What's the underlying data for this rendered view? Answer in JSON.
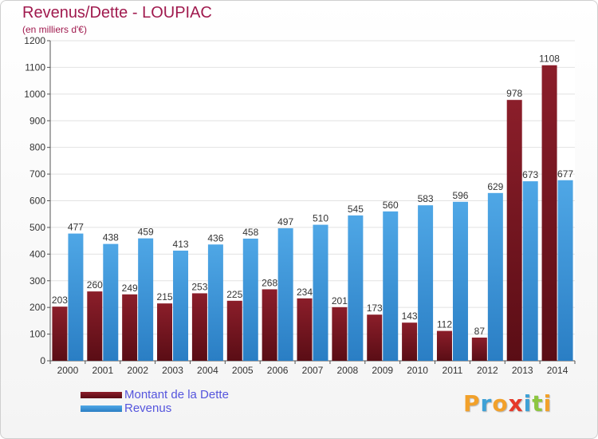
{
  "title": "Revenus/Dette - LOUPIAC",
  "subtitle": "(en milliers d'€)",
  "logo": {
    "text": "Proxiti",
    "letters": [
      "P",
      "r",
      "o",
      "x",
      "i",
      "t",
      "i"
    ],
    "colors": [
      "#f2a12a",
      "#3fa1d6",
      "#f2a12a",
      "#e6392a",
      "#3fa1d6",
      "#8dc63f",
      "#f2a12a"
    ]
  },
  "colors": {
    "dette": "#8b1e2a",
    "dette_dark": "#5a0d15",
    "revenus": "#4fa7e6",
    "revenus_dark": "#2a7ec4",
    "title": "#a01a4e",
    "legend_text": "#5555dd"
  },
  "chart_data": {
    "type": "bar",
    "categories": [
      "2000",
      "2001",
      "2002",
      "2003",
      "2004",
      "2005",
      "2006",
      "2007",
      "2008",
      "2009",
      "2010",
      "2011",
      "2012",
      "2013",
      "2014"
    ],
    "series": [
      {
        "name": "Montant de la Dette",
        "values": [
          203,
          260,
          249,
          215,
          253,
          225,
          268,
          234,
          201,
          173,
          143,
          112,
          87,
          978,
          1108
        ],
        "labels": [
          "203",
          "260",
          "249",
          "215",
          "253",
          "225",
          "268",
          "234",
          "201",
          "173",
          "143",
          "112",
          "87",
          "978",
          "1108"
        ]
      },
      {
        "name": "Revenus",
        "values": [
          477,
          438,
          459,
          413,
          436,
          458,
          497,
          510,
          545,
          560,
          583,
          596,
          629,
          673,
          677
        ],
        "labels": [
          "477",
          "438",
          "459",
          "413",
          "436",
          "458",
          "497",
          "510",
          "545",
          "560",
          "583",
          "596",
          "629",
          "673",
          "677"
        ]
      }
    ],
    "yticks": [
      "0",
      "100",
      "200",
      "300",
      "400",
      "500",
      "600",
      "700",
      "800",
      "900",
      "1000",
      "1100",
      "1200"
    ],
    "ylim": [
      0,
      1200
    ],
    "grid": true,
    "legend_position": "bottom-left"
  }
}
